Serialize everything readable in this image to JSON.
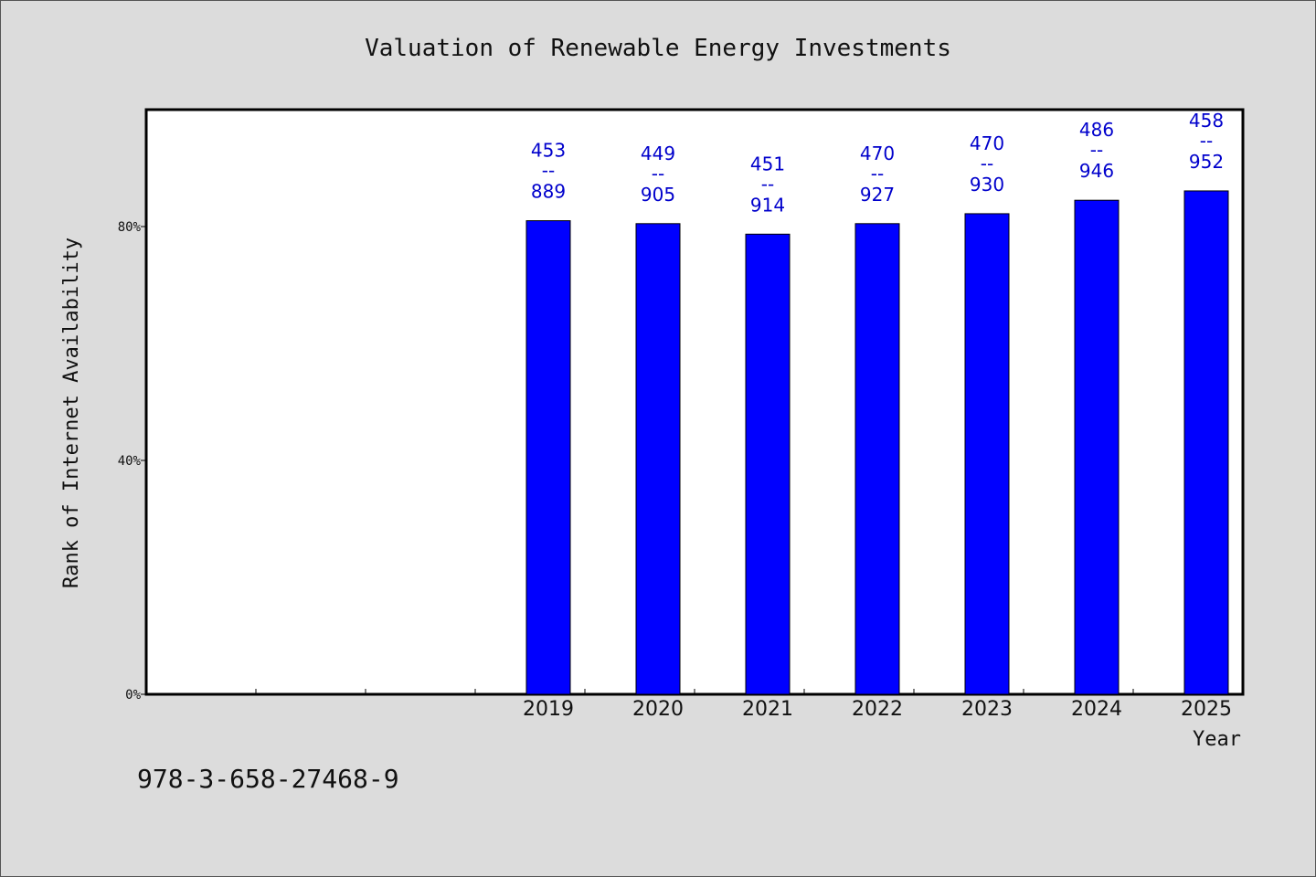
{
  "chart_data": {
    "type": "bar",
    "title": "Valuation of Renewable Energy Investments",
    "xlabel": "Year",
    "ylabel": "Rank of Internet Availability",
    "categories": [
      "",
      "",
      "",
      "2019",
      "2020",
      "2021",
      "2022",
      "2023",
      "2024",
      "2025"
    ],
    "values": [
      null,
      null,
      null,
      81,
      80.5,
      78.7,
      80.5,
      82.2,
      84.5,
      86.1
    ],
    "data_labels": [
      [
        "",
        "",
        ""
      ],
      [
        "",
        "",
        ""
      ],
      [
        "",
        "",
        ""
      ],
      [
        "453",
        "--",
        "889"
      ],
      [
        "449",
        "--",
        "905"
      ],
      [
        "451",
        "--",
        "914"
      ],
      [
        "470",
        "--",
        "927"
      ],
      [
        "470",
        "--",
        "930"
      ],
      [
        "486",
        "--",
        "946"
      ],
      [
        "458",
        "--",
        "952"
      ]
    ],
    "ylim": [
      0,
      100
    ],
    "yticks": [
      {
        "value": 0,
        "label": "0%"
      },
      {
        "value": 40,
        "label": "40%"
      },
      {
        "value": 80,
        "label": "80%"
      }
    ],
    "bar_color": "#0000ff",
    "label_color": "#0000cc",
    "grid": false
  },
  "footer_text": "978-3-658-27468-9"
}
